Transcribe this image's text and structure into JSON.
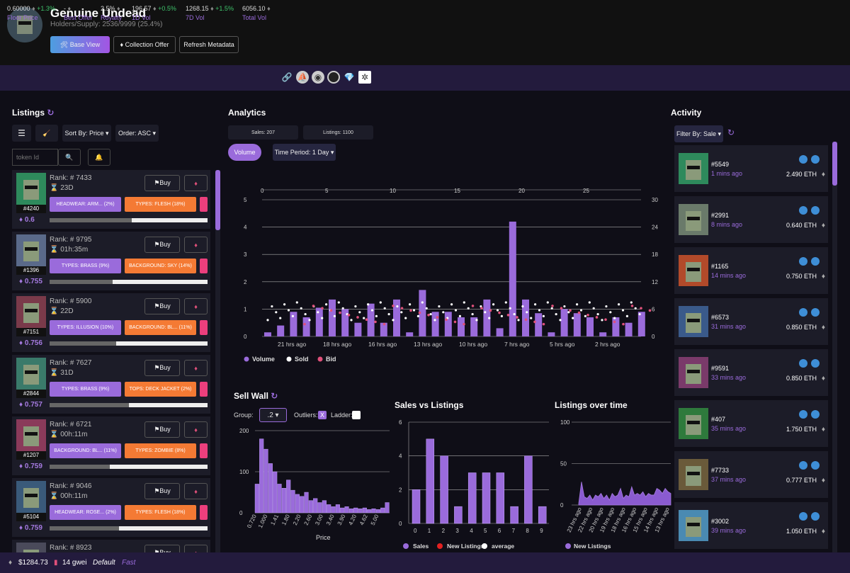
{
  "header": {
    "title": "Genuine Undead",
    "subtitle": "Holders/Supply: 2536/9999 (25.4%)",
    "buttons": {
      "base_view": "🛠 Base View",
      "collection_offer": "♦ Collection Offer",
      "refresh": "Refresh Metadata"
    }
  },
  "stats": [
    {
      "value": "0.60000",
      "delta": "+1.3%",
      "label": "Floor Price"
    },
    {
      "value": "-",
      "delta": "",
      "label": "Best Offer"
    },
    {
      "value": "2.5%",
      "delta": "",
      "label": "Royalty"
    },
    {
      "value": "196.57",
      "delta": "+0.5%",
      "label": "1D Vol"
    },
    {
      "value": "1268.15",
      "delta": "+1.5%",
      "label": "7D Vol"
    },
    {
      "value": "6056.10",
      "delta": "",
      "label": "Total Vol"
    }
  ],
  "listings_panel": {
    "title": "Listings",
    "sort": "Sort By: Price ▾",
    "order": "Order: ASC ▾",
    "token_placeholder": "token Id"
  },
  "listings": [
    {
      "token": "#4240",
      "rank": "Rank: #  7433",
      "time": "23D",
      "price": "0.6",
      "t1": "HEADWEAR: ARM...",
      "t1p": "(2%)",
      "t2": "TYPES: FLESH",
      "t2p": "(18%)",
      "bar": 0.52,
      "color": "#2e8a5c"
    },
    {
      "token": "#1396",
      "rank": "Rank: #  9795",
      "time": "01h:35m",
      "price": "0.755",
      "t1": "TYPES: BRASS",
      "t1p": "(9%)",
      "t2": "BACKGROUND: SKY",
      "t2p": "(14%)",
      "bar": 0.4,
      "color": "#5a6a8a"
    },
    {
      "token": "#7151",
      "rank": "Rank: #  5900",
      "time": "22D",
      "price": "0.756",
      "t1": "TYPES: ILLUSION",
      "t1p": "(10%)",
      "t2": "BACKGROUND: BL...",
      "t2p": "(11%)",
      "bar": 0.42,
      "color": "#7a3a4a"
    },
    {
      "token": "#2844",
      "rank": "Rank: #  7627",
      "time": "31D",
      "price": "0.757",
      "t1": "TYPES: BRASS",
      "t1p": "(9%)",
      "t2": "TOPS: DECK JACKET",
      "t2p": "(2%)",
      "bar": 0.5,
      "color": "#3a7a6a"
    },
    {
      "token": "#1207",
      "rank": "Rank: #  6721",
      "time": "00h:11m",
      "price": "0.759",
      "t1": "BACKGROUND: BL...",
      "t1p": "(11%)",
      "t2": "TYPES: ZOMBIE",
      "t2p": "(8%)",
      "bar": 0.38,
      "color": "#8a3a5a"
    },
    {
      "token": "#5104",
      "rank": "Rank: #  9046",
      "time": "00h:11m",
      "price": "0.759",
      "t1": "HEADWEAR: ROSE...",
      "t1p": "(2%)",
      "t2": "TYPES: FLESH",
      "t2p": "(18%)",
      "bar": 0.44,
      "color": "#3a5a7a"
    },
    {
      "token": "",
      "rank": "Rank: #  8923",
      "time": "",
      "price": "",
      "t1": "",
      "t1p": "",
      "t2": "",
      "t2p": "",
      "bar": 0.4,
      "color": "#4a4a5a"
    }
  ],
  "listing_buttons": {
    "buy": "⚑Buy",
    "offer": "♦"
  },
  "analytics": {
    "title": "Analytics",
    "sales": "Sales: 207",
    "listings": "Listings: 1100",
    "volume_btn": "Volume",
    "period": "Time Period: 1 Day ▾",
    "legend": [
      "Volume",
      "Sold",
      "Bid"
    ]
  },
  "chart_data": [
    {
      "type": "bar",
      "title": "",
      "x_top_ticks": [
        "0",
        "5",
        "10",
        "15",
        "20",
        "25"
      ],
      "x_labels": [
        "21 hrs ago",
        "18 hrs ago",
        "16 hrs ago",
        "13 hrs ago",
        "10 hrs ago",
        "7 hrs ago",
        "5 hrs ago",
        "2 hrs ago"
      ],
      "y_left_ticks": [
        "0",
        "1",
        "2",
        "3",
        "4",
        "5"
      ],
      "y_right_ticks": [
        "0",
        "6",
        "12",
        "18",
        "24",
        "30"
      ],
      "series": [
        {
          "name": "Volume",
          "values": [
            0.15,
            0.4,
            0.9,
            0.7,
            1.05,
            1.35,
            1.0,
            0.5,
            1.2,
            0.5,
            1.35,
            0.15,
            1.7,
            0.9,
            0.9,
            0.7,
            0.7,
            1.35,
            0.3,
            4.2,
            1.35,
            0.85,
            0.15,
            1.0,
            0.85,
            0.7,
            0.15,
            0.7,
            0.5,
            0.9
          ]
        }
      ]
    },
    {
      "type": "bar",
      "title": "Sell Wall",
      "xlabel": "Price",
      "x_labels": [
        "0.720",
        "1.000",
        "1.41",
        "1.80",
        "2.20",
        "2.60",
        "3.00",
        "3.40",
        "3.90",
        "4.20",
        "4.62",
        "5.00"
      ],
      "y_ticks": [
        "0",
        "100",
        "200"
      ],
      "values": [
        70,
        180,
        155,
        120,
        100,
        70,
        60,
        80,
        55,
        45,
        40,
        50,
        30,
        35,
        25,
        30,
        20,
        15,
        20,
        12,
        15,
        10,
        12,
        10,
        12,
        8,
        10,
        8,
        12,
        25
      ]
    },
    {
      "type": "bar",
      "title": "Sales vs Listings",
      "x_labels": [
        "0",
        "1",
        "2",
        "3",
        "4",
        "5",
        "6",
        "7",
        "8",
        "9"
      ],
      "y_ticks": [
        "0",
        "2",
        "4",
        "6"
      ],
      "values": [
        2,
        5,
        4,
        1,
        3,
        3,
        3,
        1,
        4,
        1
      ],
      "legend": [
        "Sales",
        "New Listings",
        "average"
      ]
    },
    {
      "type": "area",
      "title": "Listings over time",
      "x_labels": [
        "23 hrs ago",
        "22 hrs ago",
        "20 hrs ago",
        "19 hrs ago",
        "18 hrs ago",
        "16 hrs ago",
        "15 hrs ago",
        "14 hrs ago",
        "13 hrs ago"
      ],
      "y_ticks": [
        "0",
        "50",
        "100"
      ],
      "legend": [
        "New Listings"
      ],
      "values": [
        2,
        28,
        10,
        8,
        12,
        6,
        12,
        10,
        14,
        8,
        12,
        6,
        14,
        10,
        12,
        20,
        8,
        12,
        10,
        22,
        12,
        14,
        12,
        16,
        10,
        14,
        12,
        12,
        20,
        18,
        14,
        20,
        16,
        14
      ]
    }
  ],
  "sell_wall": {
    "group_label": "Group:",
    "group_value": ".2",
    "outliers_label": "Outliers:",
    "ladder_label": "Ladder:"
  },
  "activity_panel": {
    "title": "Activity",
    "filter": "Filter By: Sale ▾"
  },
  "activity": [
    {
      "id": "#5549",
      "ago": "1 mins ago",
      "eth": "2.490 ETH",
      "color": "#2e8a5c"
    },
    {
      "id": "#2991",
      "ago": "8 mins ago",
      "eth": "0.640 ETH",
      "color": "#6a7a6a"
    },
    {
      "id": "#1165",
      "ago": "14 mins ago",
      "eth": "0.750 ETH",
      "color": "#b24a2a"
    },
    {
      "id": "#6573",
      "ago": "31 mins ago",
      "eth": "0.850 ETH",
      "color": "#3a5a8a"
    },
    {
      "id": "#9591",
      "ago": "33 mins ago",
      "eth": "0.850 ETH",
      "color": "#7a3a6a"
    },
    {
      "id": "#407",
      "ago": "35 mins ago",
      "eth": "1.750 ETH",
      "color": "#2e7a3c"
    },
    {
      "id": "#7733",
      "ago": "37 mins ago",
      "eth": "0.777 ETH",
      "color": "#6a5a3a"
    },
    {
      "id": "#3002",
      "ago": "39 mins ago",
      "eth": "1.050 ETH",
      "color": "#4a8ab2"
    }
  ],
  "footer": {
    "price": "$1284.73",
    "gas": "14 gwei",
    "mode": "Default",
    "speed": "Fast"
  },
  "colors": {
    "accent": "#9a6bdb",
    "orange": "#f47a34",
    "pink": "#ec3f7d",
    "green": "#3ec36b"
  }
}
